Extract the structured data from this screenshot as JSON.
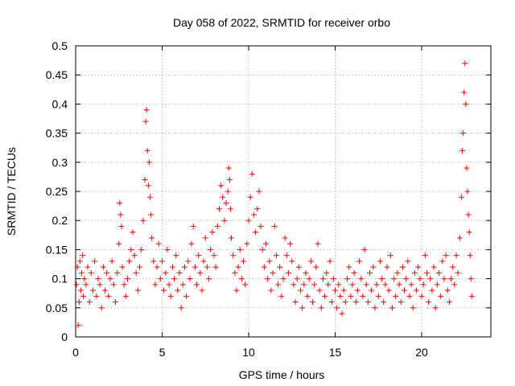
{
  "chart_data": {
    "type": "scatter",
    "title": "Day 058 of 2022, SRMTID for receiver orbo",
    "xlabel": "GPS time / hours",
    "ylabel": "SRMTID / TECUs",
    "xlim": [
      0,
      24
    ],
    "ylim": [
      0,
      0.5
    ],
    "xticks": [
      0,
      5,
      10,
      15,
      20
    ],
    "xtick_labels": [
      "0",
      "5",
      "10",
      "15",
      "20"
    ],
    "yticks": [
      0,
      0.05,
      0.1,
      0.15,
      0.2,
      0.25,
      0.3,
      0.35,
      0.4,
      0.45,
      0.5
    ],
    "ytick_labels": [
      "0",
      "0.05",
      "0.1",
      "0.15",
      "0.2",
      "0.25",
      "0.3",
      "0.35",
      "0.4",
      "0.45",
      "0.5"
    ],
    "grid": true,
    "marker": "+",
    "color": "#ff0000",
    "series": [
      {
        "name": "SRMTID",
        "points": [
          [
            0.05,
            0.09
          ],
          [
            0.1,
            0.12
          ],
          [
            0.15,
            0.02
          ],
          [
            0.2,
            0.06
          ],
          [
            0.25,
            0.13
          ],
          [
            0.3,
            0.08
          ],
          [
            0.35,
            0.11
          ],
          [
            0.4,
            0.14
          ],
          [
            0.45,
            0.07
          ],
          [
            0.5,
            0.1
          ],
          [
            0.6,
            0.09
          ],
          [
            0.7,
            0.12
          ],
          [
            0.8,
            0.06
          ],
          [
            0.9,
            0.11
          ],
          [
            1.0,
            0.08
          ],
          [
            1.1,
            0.13
          ],
          [
            1.2,
            0.07
          ],
          [
            1.3,
            0.1
          ],
          [
            1.4,
            0.09
          ],
          [
            1.5,
            0.05
          ],
          [
            1.6,
            0.12
          ],
          [
            1.7,
            0.08
          ],
          [
            1.8,
            0.11
          ],
          [
            1.9,
            0.07
          ],
          [
            2.0,
            0.1
          ],
          [
            2.1,
            0.13
          ],
          [
            2.2,
            0.09
          ],
          [
            2.3,
            0.06
          ],
          [
            2.4,
            0.11
          ],
          [
            2.5,
            0.16
          ],
          [
            2.55,
            0.23
          ],
          [
            2.6,
            0.21
          ],
          [
            2.65,
            0.19
          ],
          [
            2.7,
            0.12
          ],
          [
            2.8,
            0.09
          ],
          [
            2.9,
            0.07
          ],
          [
            3.0,
            0.1
          ],
          [
            3.1,
            0.13
          ],
          [
            3.2,
            0.15
          ],
          [
            3.3,
            0.18
          ],
          [
            3.4,
            0.14
          ],
          [
            3.5,
            0.11
          ],
          [
            3.6,
            0.08
          ],
          [
            3.7,
            0.12
          ],
          [
            3.8,
            0.15
          ],
          [
            3.9,
            0.2
          ],
          [
            4.0,
            0.27
          ],
          [
            4.05,
            0.37
          ],
          [
            4.1,
            0.39
          ],
          [
            4.15,
            0.32
          ],
          [
            4.2,
            0.26
          ],
          [
            4.25,
            0.3
          ],
          [
            4.3,
            0.24
          ],
          [
            4.35,
            0.21
          ],
          [
            4.4,
            0.17
          ],
          [
            4.5,
            0.13
          ],
          [
            4.6,
            0.09
          ],
          [
            4.7,
            0.12
          ],
          [
            4.8,
            0.16
          ],
          [
            4.9,
            0.1
          ],
          [
            5.0,
            0.13
          ],
          [
            5.1,
            0.08
          ],
          [
            5.2,
            0.11
          ],
          [
            5.3,
            0.15
          ],
          [
            5.4,
            0.09
          ],
          [
            5.5,
            0.07
          ],
          [
            5.6,
            0.12
          ],
          [
            5.7,
            0.1
          ],
          [
            5.8,
            0.14
          ],
          [
            5.9,
            0.08
          ],
          [
            6.0,
            0.11
          ],
          [
            6.1,
            0.05
          ],
          [
            6.2,
            0.09
          ],
          [
            6.3,
            0.12
          ],
          [
            6.4,
            0.07
          ],
          [
            6.5,
            0.13
          ],
          [
            6.6,
            0.1
          ],
          [
            6.7,
            0.16
          ],
          [
            6.8,
            0.19
          ],
          [
            6.9,
            0.12
          ],
          [
            7.0,
            0.09
          ],
          [
            7.1,
            0.14
          ],
          [
            7.2,
            0.11
          ],
          [
            7.3,
            0.08
          ],
          [
            7.4,
            0.13
          ],
          [
            7.5,
            0.17
          ],
          [
            7.6,
            0.12
          ],
          [
            7.7,
            0.1
          ],
          [
            7.8,
            0.15
          ],
          [
            7.9,
            0.18
          ],
          [
            8.0,
            0.14
          ],
          [
            8.1,
            0.12
          ],
          [
            8.2,
            0.19
          ],
          [
            8.3,
            0.22
          ],
          [
            8.4,
            0.26
          ],
          [
            8.5,
            0.24
          ],
          [
            8.6,
            0.2
          ],
          [
            8.7,
            0.23
          ],
          [
            8.8,
            0.25
          ],
          [
            8.85,
            0.29
          ],
          [
            8.9,
            0.27
          ],
          [
            8.95,
            0.22
          ],
          [
            9.0,
            0.17
          ],
          [
            9.1,
            0.14
          ],
          [
            9.2,
            0.11
          ],
          [
            9.3,
            0.08
          ],
          [
            9.4,
            0.12
          ],
          [
            9.5,
            0.15
          ],
          [
            9.6,
            0.1
          ],
          [
            9.7,
            0.13
          ],
          [
            9.8,
            0.09
          ],
          [
            9.9,
            0.16
          ],
          [
            10.0,
            0.2
          ],
          [
            10.1,
            0.24
          ],
          [
            10.2,
            0.28
          ],
          [
            10.3,
            0.21
          ],
          [
            10.4,
            0.18
          ],
          [
            10.5,
            0.22
          ],
          [
            10.6,
            0.25
          ],
          [
            10.7,
            0.19
          ],
          [
            10.8,
            0.15
          ],
          [
            10.9,
            0.12
          ],
          [
            11.0,
            0.16
          ],
          [
            11.1,
            0.1
          ],
          [
            11.2,
            0.13
          ],
          [
            11.3,
            0.08
          ],
          [
            11.4,
            0.11
          ],
          [
            11.5,
            0.19
          ],
          [
            11.6,
            0.14
          ],
          [
            11.7,
            0.09
          ],
          [
            11.8,
            0.12
          ],
          [
            11.9,
            0.07
          ],
          [
            12.0,
            0.1
          ],
          [
            12.1,
            0.17
          ],
          [
            12.2,
            0.14
          ],
          [
            12.3,
            0.11
          ],
          [
            12.4,
            0.16
          ],
          [
            12.5,
            0.13
          ],
          [
            12.6,
            0.09
          ],
          [
            12.7,
            0.06
          ],
          [
            12.8,
            0.1
          ],
          [
            12.9,
            0.12
          ],
          [
            13.0,
            0.08
          ],
          [
            13.1,
            0.05
          ],
          [
            13.2,
            0.09
          ],
          [
            13.3,
            0.11
          ],
          [
            13.4,
            0.07
          ],
          [
            13.5,
            0.1
          ],
          [
            13.6,
            0.13
          ],
          [
            13.7,
            0.06
          ],
          [
            13.8,
            0.09
          ],
          [
            13.9,
            0.12
          ],
          [
            14.0,
            0.16
          ],
          [
            14.1,
            0.08
          ],
          [
            14.2,
            0.05
          ],
          [
            14.3,
            0.1
          ],
          [
            14.4,
            0.07
          ],
          [
            14.5,
            0.11
          ],
          [
            14.6,
            0.09
          ],
          [
            14.7,
            0.13
          ],
          [
            14.8,
            0.06
          ],
          [
            14.9,
            0.1
          ],
          [
            15.0,
            0.08
          ],
          [
            15.1,
            0.05
          ],
          [
            15.2,
            0.09
          ],
          [
            15.3,
            0.07
          ],
          [
            15.4,
            0.04
          ],
          [
            15.5,
            0.08
          ],
          [
            15.6,
            0.06
          ],
          [
            15.7,
            0.1
          ],
          [
            15.8,
            0.12
          ],
          [
            15.9,
            0.07
          ],
          [
            16.0,
            0.09
          ],
          [
            16.1,
            0.11
          ],
          [
            16.2,
            0.06
          ],
          [
            16.3,
            0.08
          ],
          [
            16.4,
            0.13
          ],
          [
            16.5,
            0.1
          ],
          [
            16.6,
            0.07
          ],
          [
            16.7,
            0.15
          ],
          [
            16.8,
            0.09
          ],
          [
            16.9,
            0.06
          ],
          [
            17.0,
            0.11
          ],
          [
            17.1,
            0.08
          ],
          [
            17.2,
            0.12
          ],
          [
            17.3,
            0.05
          ],
          [
            17.4,
            0.09
          ],
          [
            17.5,
            0.07
          ],
          [
            17.6,
            0.13
          ],
          [
            17.7,
            0.1
          ],
          [
            17.8,
            0.06
          ],
          [
            17.9,
            0.09
          ],
          [
            18.0,
            0.12
          ],
          [
            18.1,
            0.08
          ],
          [
            18.2,
            0.14
          ],
          [
            18.3,
            0.05
          ],
          [
            18.4,
            0.1
          ],
          [
            18.5,
            0.07
          ],
          [
            18.6,
            0.11
          ],
          [
            18.7,
            0.09
          ],
          [
            18.8,
            0.06
          ],
          [
            18.9,
            0.12
          ],
          [
            19.0,
            0.08
          ],
          [
            19.1,
            0.1
          ],
          [
            19.2,
            0.13
          ],
          [
            19.3,
            0.07
          ],
          [
            19.4,
            0.09
          ],
          [
            19.5,
            0.05
          ],
          [
            19.6,
            0.11
          ],
          [
            19.7,
            0.08
          ],
          [
            19.8,
            0.12
          ],
          [
            19.9,
            0.1
          ],
          [
            20.0,
            0.07
          ],
          [
            20.1,
            0.09
          ],
          [
            20.2,
            0.14
          ],
          [
            20.3,
            0.11
          ],
          [
            20.4,
            0.06
          ],
          [
            20.5,
            0.1
          ],
          [
            20.6,
            0.08
          ],
          [
            20.7,
            0.12
          ],
          [
            20.8,
            0.05
          ],
          [
            20.9,
            0.09
          ],
          [
            21.0,
            0.11
          ],
          [
            21.1,
            0.07
          ],
          [
            21.2,
            0.13
          ],
          [
            21.3,
            0.1
          ],
          [
            21.4,
            0.14
          ],
          [
            21.5,
            0.08
          ],
          [
            21.6,
            0.06
          ],
          [
            21.7,
            0.1
          ],
          [
            21.8,
            0.12
          ],
          [
            21.9,
            0.09
          ],
          [
            22.0,
            0.14
          ],
          [
            22.1,
            0.11
          ],
          [
            22.2,
            0.17
          ],
          [
            22.3,
            0.24
          ],
          [
            22.35,
            0.32
          ],
          [
            22.4,
            0.35
          ],
          [
            22.45,
            0.42
          ],
          [
            22.5,
            0.47
          ],
          [
            22.55,
            0.4
          ],
          [
            22.6,
            0.29
          ],
          [
            22.65,
            0.25
          ],
          [
            22.7,
            0.21
          ],
          [
            22.75,
            0.18
          ],
          [
            22.8,
            0.14
          ],
          [
            22.85,
            0.1
          ],
          [
            22.9,
            0.07
          ]
        ]
      }
    ]
  }
}
